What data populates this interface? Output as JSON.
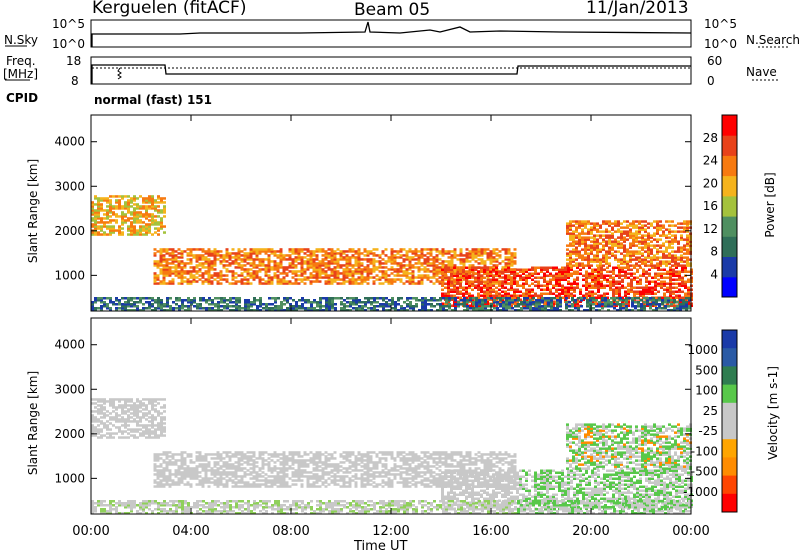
{
  "header": {
    "station": "Kerguelen (fitACF)",
    "beam": "Beam 05",
    "date": "11/Jan/2013"
  },
  "sky_panel": {
    "left_label": "N.Sky",
    "left_ticks": [
      "10^5",
      "10^0"
    ],
    "right_label": "N.Search",
    "right_ticks": [
      "10^5",
      "10^0"
    ]
  },
  "freq_panel": {
    "left_label_1": "Freq.",
    "left_label_2": "[MHz]",
    "left_ticks": [
      "18",
      "8"
    ],
    "right_label": "Nave",
    "right_ticks": [
      "60",
      "0"
    ]
  },
  "cpid": {
    "label": "CPID",
    "value": "normal (fast) 151"
  },
  "colors": {
    "power": [
      "#0000ff",
      "#1a3aa8",
      "#2f6e58",
      "#4f8f60",
      "#a4c23c",
      "#f5b31c",
      "#f77a10",
      "#e8421a",
      "#ff0000"
    ],
    "velocity": [
      "#ff0000",
      "#ff4500",
      "#ff8c00",
      "#ffa500",
      "#c8c8c8",
      "#c8c8c8",
      "#58c84a",
      "#2f7d50",
      "#2a5aa5",
      "#1a3aa8"
    ]
  },
  "chart_data": [
    {
      "type": "heatmap",
      "name": "power",
      "ylabel": "Slant Range [km]",
      "y_ticks": [
        1000,
        2000,
        3000,
        4000
      ],
      "ylim": [
        200,
        4600
      ],
      "colorbar": {
        "label": "Power [dB]",
        "ticks": [
          "4",
          "8",
          "12",
          "16",
          "20",
          "24",
          "28"
        ],
        "range": [
          0,
          32
        ]
      },
      "description_bands": [
        {
          "t0": 0.0,
          "t1": 3.0,
          "r0": 1900,
          "r1": 2800,
          "level": 20
        },
        {
          "t0": 2.5,
          "t1": 17.0,
          "r0": 800,
          "r1": 1600,
          "level": 24
        },
        {
          "t0": 14.0,
          "t1": 24.0,
          "r0": 300,
          "r1": 1200,
          "level": 28
        },
        {
          "t0": 19.0,
          "t1": 24.0,
          "r0": 1200,
          "r1": 2200,
          "level": 24
        },
        {
          "t0": 0.0,
          "t1": 24.0,
          "r0": 200,
          "r1": 500,
          "level": 8
        }
      ]
    },
    {
      "type": "heatmap",
      "name": "velocity",
      "ylabel": "Slant Range [km]",
      "xlabel": "Time UT",
      "x_ticks": [
        "00:00",
        "04:00",
        "08:00",
        "12:00",
        "16:00",
        "20:00",
        "00:00"
      ],
      "xlim": [
        0,
        24
      ],
      "y_ticks": [
        1000,
        2000,
        3000,
        4000
      ],
      "ylim": [
        200,
        4600
      ],
      "colorbar": {
        "label": "Velocity [m s-1]",
        "ticks": [
          "1000",
          "500",
          "100",
          "25",
          "-25",
          "-100",
          "-500",
          "-1000"
        ]
      }
    }
  ]
}
